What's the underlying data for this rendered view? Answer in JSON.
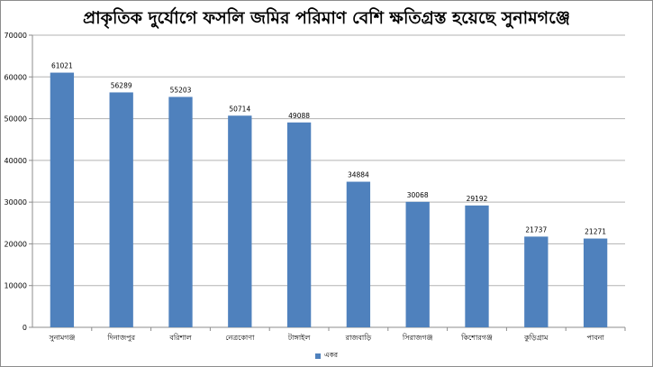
{
  "chart_data": {
    "type": "bar",
    "title": "প্রাকৃতিক দুর্যোগে ফসলি জমির পরিমাণ বেশি ক্ষতিগ্রস্ত হয়েছে সুনামগঞ্জে",
    "xlabel": "",
    "ylabel": "",
    "ylim": [
      0,
      70000
    ],
    "yticks": [
      0,
      10000,
      20000,
      30000,
      40000,
      50000,
      60000,
      70000
    ],
    "grid": true,
    "legend_position": "bottom",
    "categories": [
      "সুনামগঞ্জ",
      "দিনাজপুর",
      "বরিশাল",
      "নেত্রকোণা",
      "টাঙ্গাইল",
      "রাজবাড়ি",
      "সিরাজগঞ্জ",
      "কিশোরগঞ্জ",
      "কুড়িগ্রাম",
      "পাবনা"
    ],
    "series": [
      {
        "name": "একর",
        "color": "#4f81bd",
        "values": [
          61021,
          56289,
          55203,
          50714,
          49088,
          34884,
          30068,
          29192,
          21737,
          21271
        ]
      }
    ]
  }
}
